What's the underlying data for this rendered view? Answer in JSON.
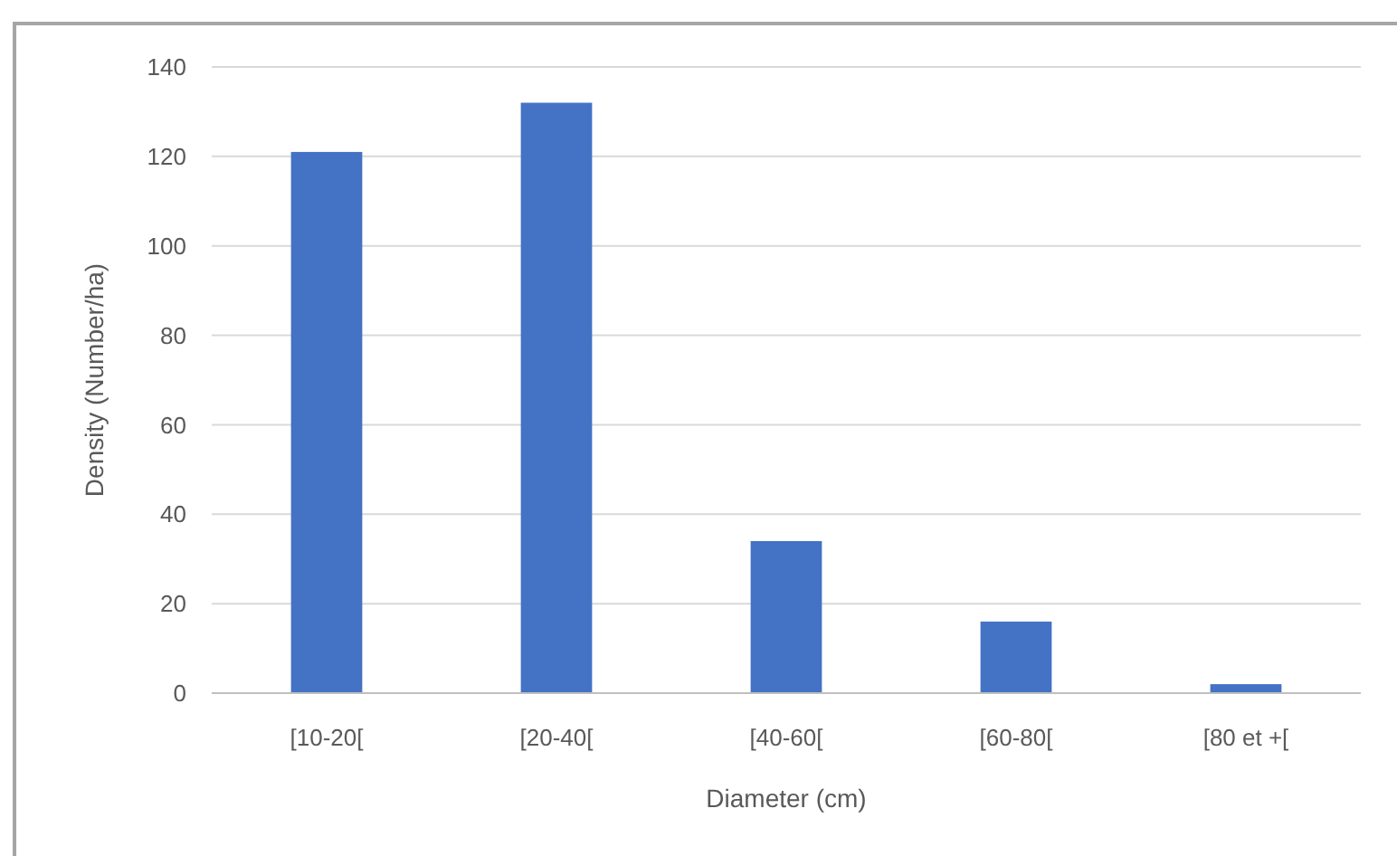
{
  "chart_data": {
    "type": "bar",
    "xlabel": "Diameter (cm)",
    "ylabel": "Density (Number/ha)",
    "categories": [
      "[10-20[",
      "[20-40[",
      "[40-60[",
      "[60-80[",
      "[80 et +["
    ],
    "values": [
      121,
      132,
      34,
      16,
      2
    ],
    "color": "#4472c4",
    "ylim": [
      0,
      140
    ],
    "yticks": [
      0,
      20,
      40,
      60,
      80,
      100,
      120,
      140
    ],
    "grid": "y"
  }
}
